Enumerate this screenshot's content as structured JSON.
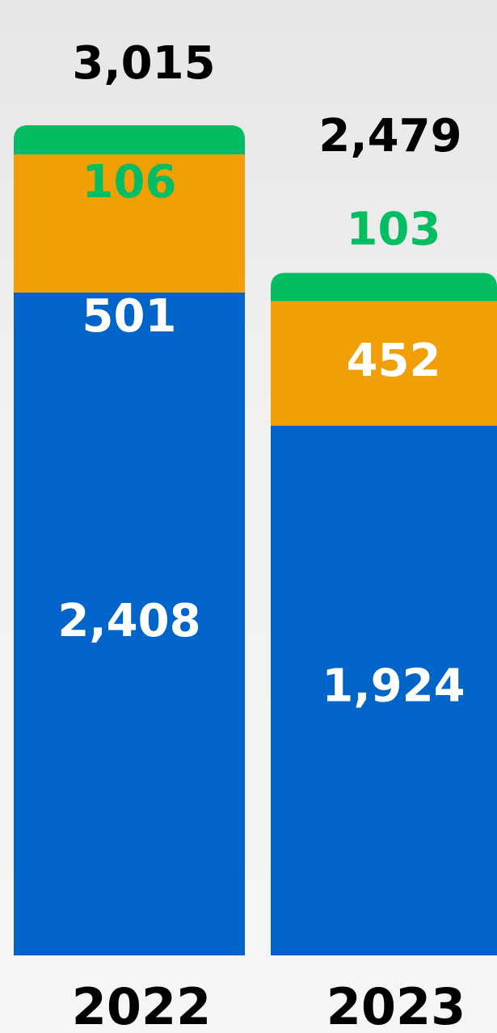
{
  "chart_data": {
    "type": "stacked-bar",
    "categories": [
      "2022",
      "2023"
    ],
    "series": [
      {
        "color": "#0064c8",
        "values": [
          2408,
          1924
        ],
        "value_labels": [
          "2,408",
          "1,924"
        ]
      },
      {
        "color": "#f29e05",
        "values": [
          501,
          452
        ],
        "value_labels": [
          "501",
          "452"
        ]
      },
      {
        "color": "#02bd62",
        "values": [
          106,
          103
        ],
        "value_labels": [
          "106",
          "103"
        ]
      }
    ],
    "totals": [
      3015,
      2479
    ],
    "total_labels": [
      "3,015",
      "2,479"
    ]
  }
}
